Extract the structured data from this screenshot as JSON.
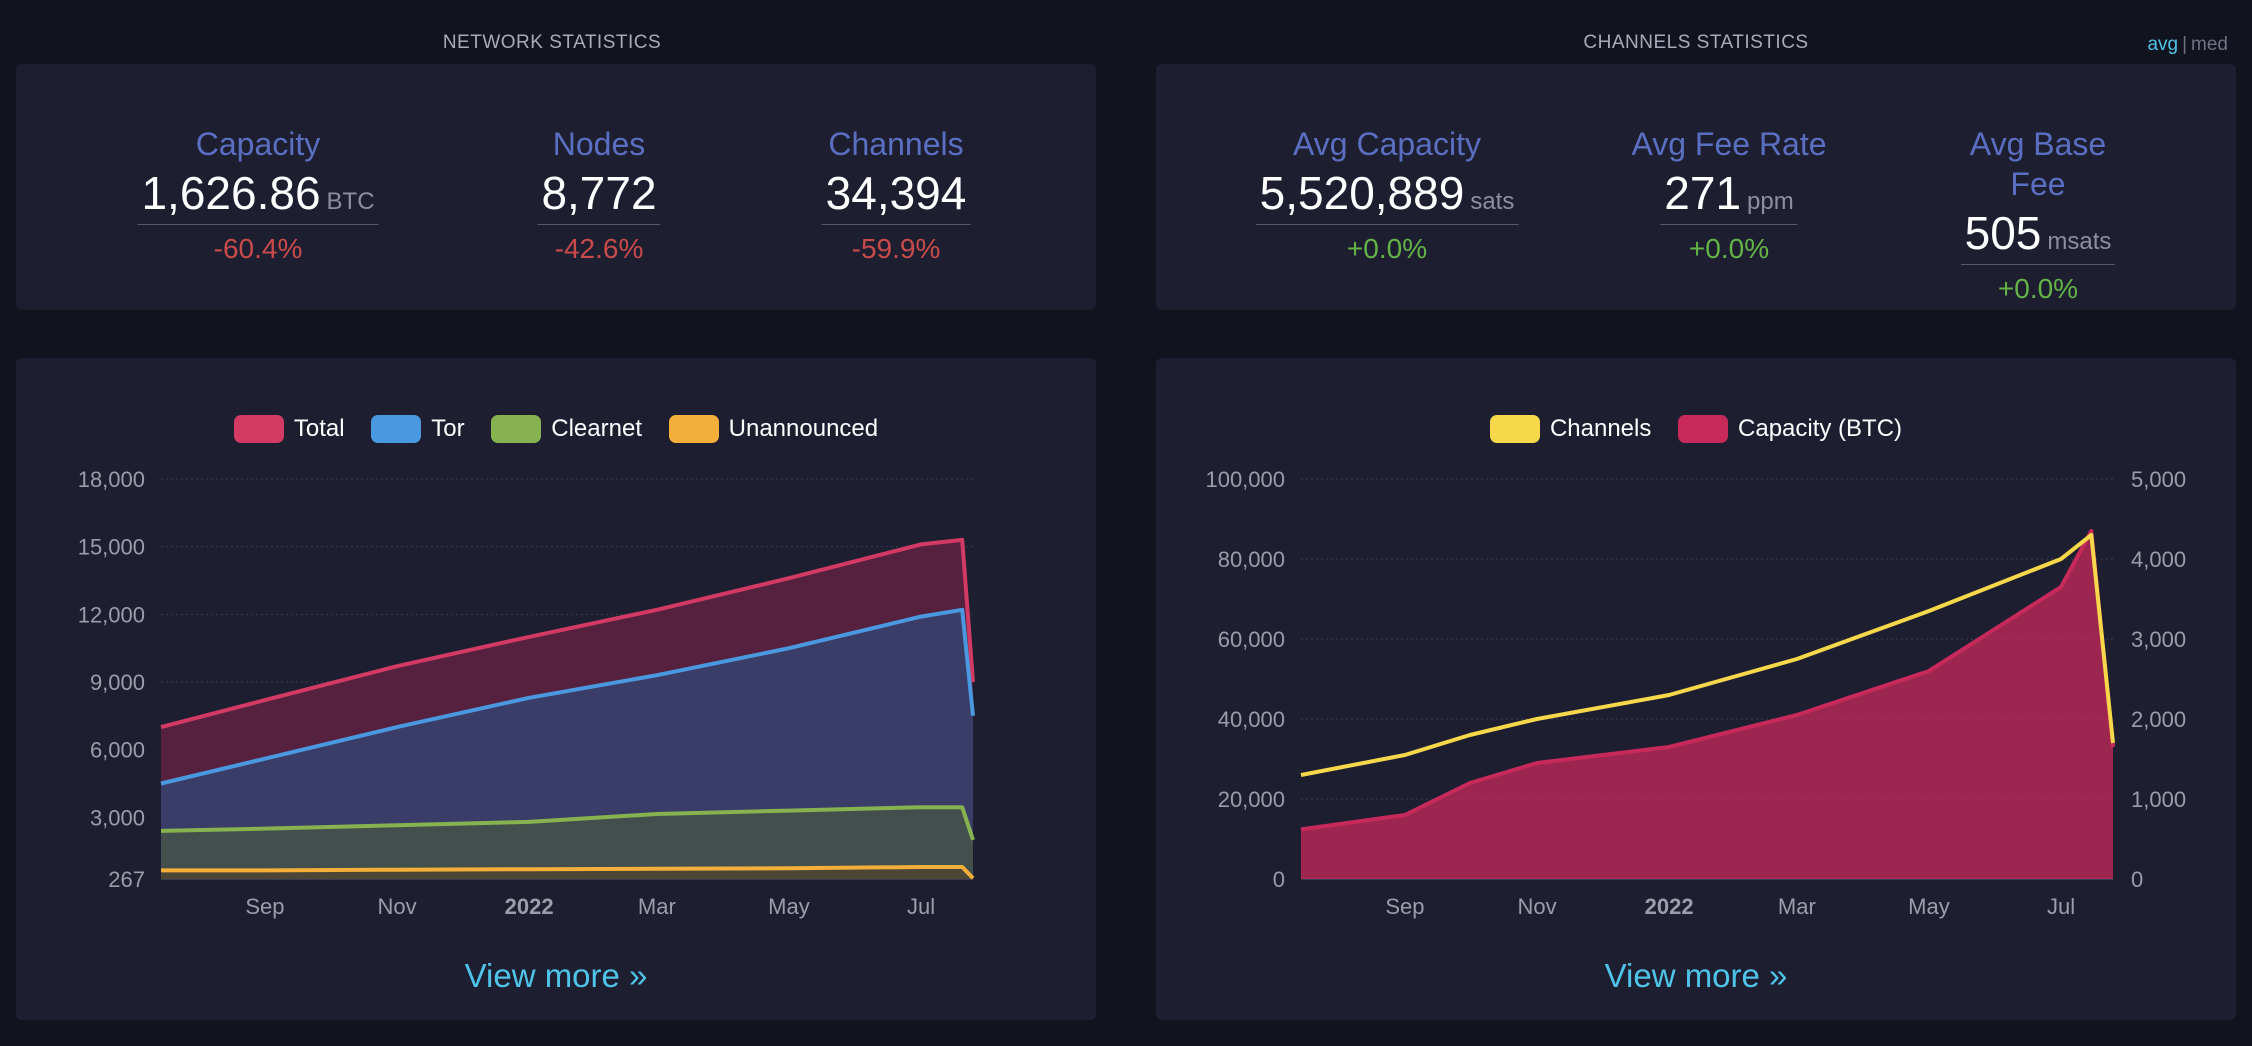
{
  "network": {
    "title": "NETWORK STATISTICS",
    "stats": [
      {
        "label": "Capacity",
        "value": "1,626.86",
        "unit": "BTC",
        "change": "-60.4%"
      },
      {
        "label": "Nodes",
        "value": "8,772",
        "unit": "",
        "change": "-42.6%"
      },
      {
        "label": "Channels",
        "value": "34,394",
        "unit": "",
        "change": "-59.9%"
      }
    ],
    "view_more": "View more »"
  },
  "channels": {
    "title": "CHANNELS STATISTICS",
    "toggle": {
      "avg": "avg",
      "separator": "|",
      "med": "med"
    },
    "stats": [
      {
        "label": "Avg Capacity",
        "value": "5,520,889",
        "unit": "sats",
        "change": "+0.0%"
      },
      {
        "label": "Avg Fee Rate",
        "value": "271",
        "unit": "ppm",
        "change": "+0.0%"
      },
      {
        "label": "Avg Base Fee",
        "value": "505",
        "unit": "msats",
        "change": "+0.0%"
      }
    ],
    "view_more": "View more »"
  },
  "colors": {
    "total": "#d23a64",
    "tor": "#4a98e0",
    "clearnet": "#86b24f",
    "unannounced": "#f4ae3a",
    "channels_line": "#f7d84a",
    "capacity": "#c8295b"
  },
  "chart_data": [
    {
      "type": "area",
      "title": "",
      "legend": [
        "Total",
        "Tor",
        "Clearnet",
        "Unannounced"
      ],
      "x_ticks": [
        "Sep",
        "Nov",
        "2022",
        "Mar",
        "May",
        "Jul"
      ],
      "y_ticks": [
        "267",
        "3,000",
        "6,000",
        "9,000",
        "12,000",
        "15,000",
        "18,000"
      ],
      "ylim": [
        267,
        18000
      ],
      "x": [
        "2021-07-15",
        "2021-09-01",
        "2021-11-01",
        "2022-01-01",
        "2022-03-01",
        "2022-05-01",
        "2022-07-01",
        "2022-07-20",
        "2022-07-25"
      ],
      "series": [
        {
          "name": "Total",
          "values": [
            7000,
            8200,
            9700,
            11000,
            12200,
            13600,
            15100,
            15300,
            9000
          ]
        },
        {
          "name": "Tor",
          "values": [
            4500,
            5600,
            7000,
            8300,
            9300,
            10500,
            11900,
            12200,
            7500
          ]
        },
        {
          "name": "Clearnet",
          "values": [
            2400,
            2500,
            2650,
            2800,
            3150,
            3300,
            3450,
            3450,
            2000
          ]
        },
        {
          "name": "Unannounced",
          "values": [
            650,
            650,
            680,
            700,
            720,
            740,
            800,
            800,
            300
          ]
        }
      ]
    },
    {
      "type": "area",
      "title": "",
      "legend": [
        "Channels",
        "Capacity (BTC)"
      ],
      "x_ticks": [
        "Sep",
        "Nov",
        "2022",
        "Mar",
        "May",
        "Jul"
      ],
      "y_ticks_left": [
        "0",
        "20,000",
        "40,000",
        "60,000",
        "80,000",
        "100,000"
      ],
      "y_ticks_right": [
        "0",
        "1,000",
        "2,000",
        "3,000",
        "4,000",
        "5,000"
      ],
      "ylim_left": [
        0,
        100000
      ],
      "ylim_right": [
        0,
        5000
      ],
      "x": [
        "2021-07-15",
        "2021-09-01",
        "2021-10-01",
        "2021-11-01",
        "2022-01-01",
        "2022-03-01",
        "2022-05-01",
        "2022-07-01",
        "2022-07-15",
        "2022-07-25"
      ],
      "series": [
        {
          "name": "Channels",
          "axis": "left",
          "values": [
            26000,
            31000,
            36000,
            40000,
            46000,
            55000,
            67000,
            80000,
            86000,
            34000
          ]
        },
        {
          "name": "Capacity (BTC)",
          "axis": "right",
          "values": [
            620,
            800,
            1200,
            1450,
            1650,
            2050,
            2600,
            3650,
            4350,
            1650
          ]
        }
      ]
    }
  ]
}
